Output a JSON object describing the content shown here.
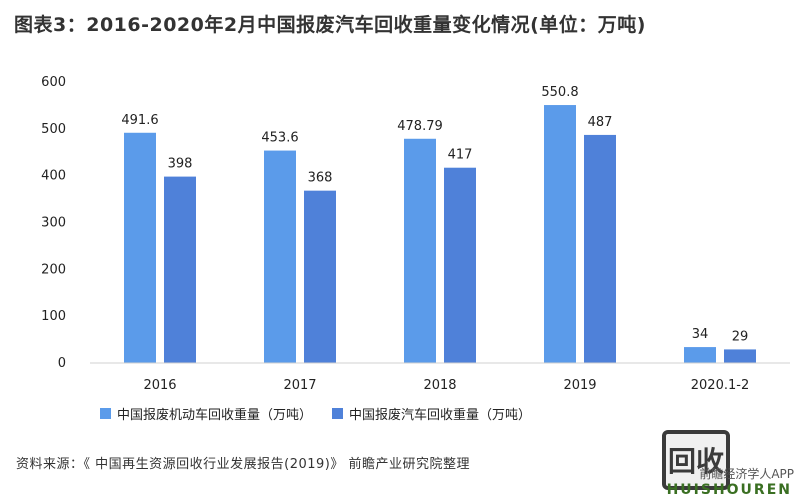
{
  "title": "图表3：2016-2020年2月中国报废汽车回收重量变化情况(单位：万吨)",
  "chart_data": {
    "type": "bar",
    "categories": [
      "2016",
      "2017",
      "2018",
      "2019",
      "2020.1-2"
    ],
    "series": [
      {
        "name": "中国报废机动车回收重量（万吨）",
        "values": [
          491.6,
          453.6,
          478.79,
          550.8,
          34
        ],
        "labels": [
          "491.6",
          "453.6",
          "478.79",
          "550.8",
          "34"
        ],
        "color": "#5b9bea"
      },
      {
        "name": "中国报废汽车回收重量（万吨）",
        "values": [
          398,
          368,
          417,
          487,
          29
        ],
        "labels": [
          "398",
          "368",
          "417",
          "487",
          "29"
        ],
        "color": "#4f81d9"
      }
    ],
    "yticks": [
      "0",
      "100",
      "200",
      "300",
      "400",
      "500",
      "600"
    ],
    "ylim": [
      0,
      600
    ],
    "grid": false,
    "legend_position": "bottom"
  },
  "source": "资料来源：《 中国再生资源回收行业发展报告(2019)》 前瞻产业研究院整理",
  "watermark": {
    "badge": "回收",
    "text": "HUISHOUREN",
    "app": "前瞻经济学人APP"
  }
}
